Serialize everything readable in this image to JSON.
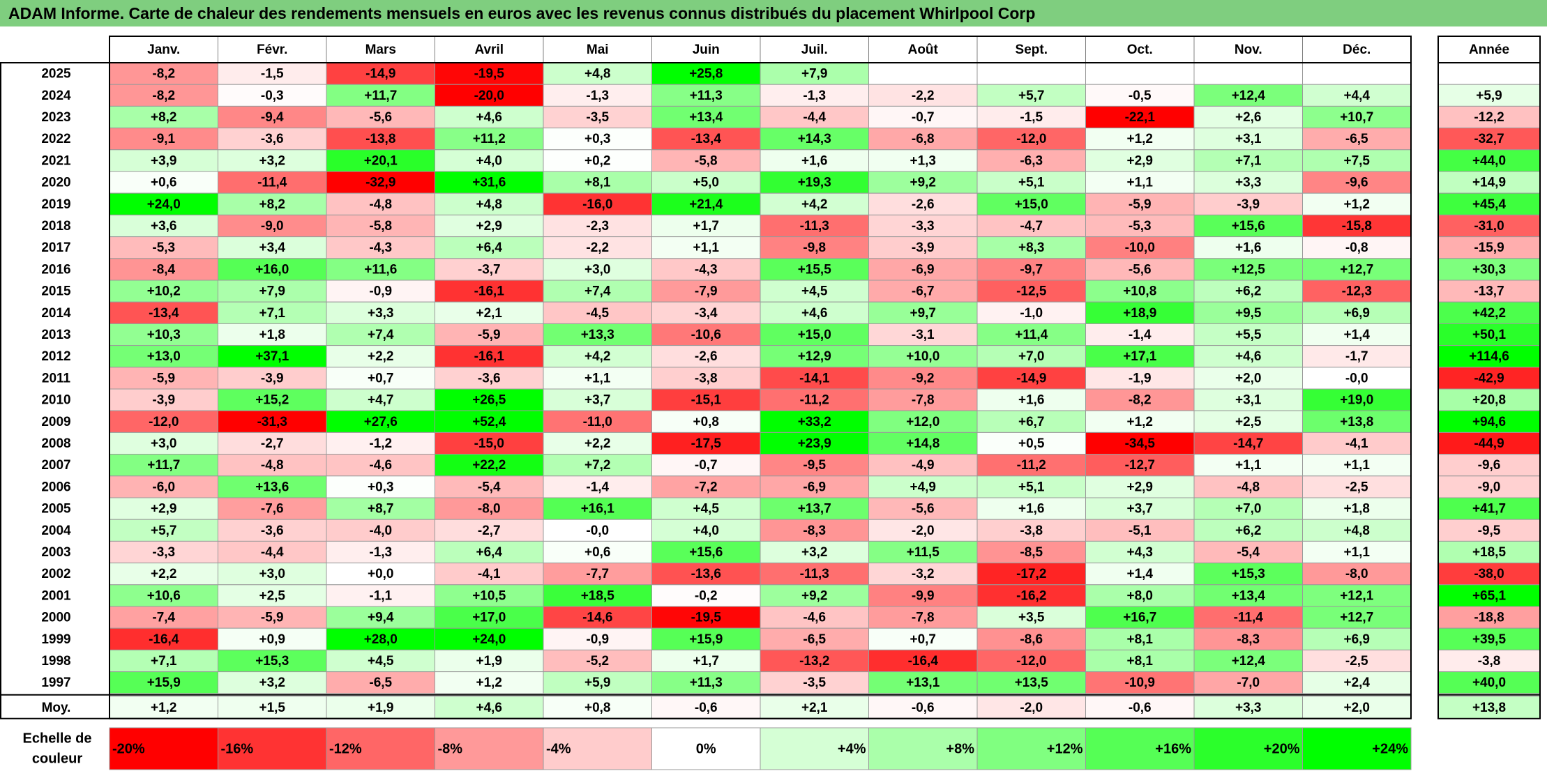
{
  "title": "ADAM Informe. Carte de chaleur des rendements mensuels en euros avec les revenus connus distribués du placement Whirlpool Corp",
  "chart_data": {
    "type": "heatmap",
    "months": [
      "Janv.",
      "Févr.",
      "Mars",
      "Avril",
      "Mai",
      "Juin",
      "Juil.",
      "Août",
      "Sept.",
      "Oct.",
      "Nov.",
      "Déc."
    ],
    "year_header": "Année",
    "rows": [
      {
        "year": "2025",
        "values": [
          "-8,2",
          "-1,5",
          "-14,9",
          "-19,5",
          "+4,8",
          "+25,8",
          "+7,9",
          "",
          "",
          "",
          "",
          ""
        ],
        "annual": ""
      },
      {
        "year": "2024",
        "values": [
          "-8,2",
          "-0,3",
          "+11,7",
          "-20,0",
          "-1,3",
          "+11,3",
          "-1,3",
          "-2,2",
          "+5,7",
          "-0,5",
          "+12,4",
          "+4,4"
        ],
        "annual": "+5,9"
      },
      {
        "year": "2023",
        "values": [
          "+8,2",
          "-9,4",
          "-5,6",
          "+4,6",
          "-3,5",
          "+13,4",
          "-4,4",
          "-0,7",
          "-1,5",
          "-22,1",
          "+2,6",
          "+10,7"
        ],
        "annual": "-12,2"
      },
      {
        "year": "2022",
        "values": [
          "-9,1",
          "-3,6",
          "-13,8",
          "+11,2",
          "+0,3",
          "-13,4",
          "+14,3",
          "-6,8",
          "-12,0",
          "+1,2",
          "+3,1",
          "-6,5"
        ],
        "annual": "-32,7"
      },
      {
        "year": "2021",
        "values": [
          "+3,9",
          "+3,2",
          "+20,1",
          "+4,0",
          "+0,2",
          "-5,8",
          "+1,6",
          "+1,3",
          "-6,3",
          "+2,9",
          "+7,1",
          "+7,5"
        ],
        "annual": "+44,0"
      },
      {
        "year": "2020",
        "values": [
          "+0,6",
          "-11,4",
          "-32,9",
          "+31,6",
          "+8,1",
          "+5,0",
          "+19,3",
          "+9,2",
          "+5,1",
          "+1,1",
          "+3,3",
          "-9,6"
        ],
        "annual": "+14,9"
      },
      {
        "year": "2019",
        "values": [
          "+24,0",
          "+8,2",
          "-4,8",
          "+4,8",
          "-16,0",
          "+21,4",
          "+4,2",
          "-2,6",
          "+15,0",
          "-5,9",
          "-3,9",
          "+1,2"
        ],
        "annual": "+45,4"
      },
      {
        "year": "2018",
        "values": [
          "+3,6",
          "-9,0",
          "-5,8",
          "+2,9",
          "-2,3",
          "+1,7",
          "-11,3",
          "-3,3",
          "-4,7",
          "-5,3",
          "+15,6",
          "-15,8"
        ],
        "annual": "-31,0"
      },
      {
        "year": "2017",
        "values": [
          "-5,3",
          "+3,4",
          "-4,3",
          "+6,4",
          "-2,2",
          "+1,1",
          "-9,8",
          "-3,9",
          "+8,3",
          "-10,0",
          "+1,6",
          "-0,8"
        ],
        "annual": "-15,9"
      },
      {
        "year": "2016",
        "values": [
          "-8,4",
          "+16,0",
          "+11,6",
          "-3,7",
          "+3,0",
          "-4,3",
          "+15,5",
          "-6,9",
          "-9,7",
          "-5,6",
          "+12,5",
          "+12,7"
        ],
        "annual": "+30,3"
      },
      {
        "year": "2015",
        "values": [
          "+10,2",
          "+7,9",
          "-0,9",
          "-16,1",
          "+7,4",
          "-7,9",
          "+4,5",
          "-6,7",
          "-12,5",
          "+10,8",
          "+6,2",
          "-12,3"
        ],
        "annual": "-13,7"
      },
      {
        "year": "2014",
        "values": [
          "-13,4",
          "+7,1",
          "+3,3",
          "+2,1",
          "-4,5",
          "-3,4",
          "+4,6",
          "+9,7",
          "-1,0",
          "+18,9",
          "+9,5",
          "+6,9"
        ],
        "annual": "+42,2"
      },
      {
        "year": "2013",
        "values": [
          "+10,3",
          "+1,8",
          "+7,4",
          "-5,9",
          "+13,3",
          "-10,6",
          "+15,0",
          "-3,1",
          "+11,4",
          "-1,4",
          "+5,5",
          "+1,4"
        ],
        "annual": "+50,1"
      },
      {
        "year": "2012",
        "values": [
          "+13,0",
          "+37,1",
          "+2,2",
          "-16,1",
          "+4,2",
          "-2,6",
          "+12,9",
          "+10,0",
          "+7,0",
          "+17,1",
          "+4,6",
          "-1,7"
        ],
        "annual": "+114,6"
      },
      {
        "year": "2011",
        "values": [
          "-5,9",
          "-3,9",
          "+0,7",
          "-3,6",
          "+1,1",
          "-3,8",
          "-14,1",
          "-9,2",
          "-14,9",
          "-1,9",
          "+2,0",
          "-0,0"
        ],
        "annual": "-42,9"
      },
      {
        "year": "2010",
        "values": [
          "-3,9",
          "+15,2",
          "+4,7",
          "+26,5",
          "+3,7",
          "-15,1",
          "-11,2",
          "-7,8",
          "+1,6",
          "-8,2",
          "+3,1",
          "+19,0"
        ],
        "annual": "+20,8"
      },
      {
        "year": "2009",
        "values": [
          "-12,0",
          "-31,3",
          "+27,6",
          "+52,4",
          "-11,0",
          "+0,8",
          "+33,2",
          "+12,0",
          "+6,7",
          "+1,2",
          "+2,5",
          "+13,8"
        ],
        "annual": "+94,6"
      },
      {
        "year": "2008",
        "values": [
          "+3,0",
          "-2,7",
          "-1,2",
          "-15,0",
          "+2,2",
          "-17,5",
          "+23,9",
          "+14,8",
          "+0,5",
          "-34,5",
          "-14,7",
          "-4,1"
        ],
        "annual": "-44,9"
      },
      {
        "year": "2007",
        "values": [
          "+11,7",
          "-4,8",
          "-4,6",
          "+22,2",
          "+7,2",
          "-0,7",
          "-9,5",
          "-4,9",
          "-11,2",
          "-12,7",
          "+1,1",
          "+1,1"
        ],
        "annual": "-9,6"
      },
      {
        "year": "2006",
        "values": [
          "-6,0",
          "+13,6",
          "+0,3",
          "-5,4",
          "-1,4",
          "-7,2",
          "-6,9",
          "+4,9",
          "+5,1",
          "+2,9",
          "-4,8",
          "-2,5"
        ],
        "annual": "-9,0"
      },
      {
        "year": "2005",
        "values": [
          "+2,9",
          "-7,6",
          "+8,7",
          "-8,0",
          "+16,1",
          "+4,5",
          "+13,7",
          "-5,6",
          "+1,6",
          "+3,7",
          "+7,0",
          "+1,8"
        ],
        "annual": "+41,7"
      },
      {
        "year": "2004",
        "values": [
          "+5,7",
          "-3,6",
          "-4,0",
          "-2,7",
          "-0,0",
          "+4,0",
          "-8,3",
          "-2,0",
          "-3,8",
          "-5,1",
          "+6,2",
          "+4,8"
        ],
        "annual": "-9,5"
      },
      {
        "year": "2003",
        "values": [
          "-3,3",
          "-4,4",
          "-1,3",
          "+6,4",
          "+0,6",
          "+15,6",
          "+3,2",
          "+11,5",
          "-8,5",
          "+4,3",
          "-5,4",
          "+1,1"
        ],
        "annual": "+18,5"
      },
      {
        "year": "2002",
        "values": [
          "+2,2",
          "+3,0",
          "+0,0",
          "-4,1",
          "-7,7",
          "-13,6",
          "-11,3",
          "-3,2",
          "-17,2",
          "+1,4",
          "+15,3",
          "-8,0"
        ],
        "annual": "-38,0"
      },
      {
        "year": "2001",
        "values": [
          "+10,6",
          "+2,5",
          "-1,1",
          "+10,5",
          "+18,5",
          "-0,2",
          "+9,2",
          "-9,9",
          "-16,2",
          "+8,0",
          "+13,4",
          "+12,1"
        ],
        "annual": "+65,1"
      },
      {
        "year": "2000",
        "values": [
          "-7,4",
          "-5,9",
          "+9,4",
          "+17,0",
          "-14,6",
          "-19,5",
          "-4,6",
          "-7,8",
          "+3,5",
          "+16,7",
          "-11,4",
          "+12,7"
        ],
        "annual": "-18,8"
      },
      {
        "year": "1999",
        "values": [
          "-16,4",
          "+0,9",
          "+28,0",
          "+24,0",
          "-0,9",
          "+15,9",
          "-6,5",
          "+0,7",
          "-8,6",
          "+8,1",
          "-8,3",
          "+6,9"
        ],
        "annual": "+39,5"
      },
      {
        "year": "1998",
        "values": [
          "+7,1",
          "+15,3",
          "+4,5",
          "+1,9",
          "-5,2",
          "+1,7",
          "-13,2",
          "-16,4",
          "-12,0",
          "+8,1",
          "+12,4",
          "-2,5"
        ],
        "annual": "-3,8"
      },
      {
        "year": "1997",
        "values": [
          "+15,9",
          "+3,2",
          "-6,5",
          "+1,2",
          "+5,9",
          "+11,3",
          "-3,5",
          "+13,1",
          "+13,5",
          "-10,9",
          "-7,0",
          "+2,4"
        ],
        "annual": "+40,0"
      }
    ],
    "average": {
      "label": "Moy.",
      "values": [
        "+1,2",
        "+1,5",
        "+1,9",
        "+4,6",
        "+0,8",
        "-0,6",
        "+2,1",
        "-0,6",
        "-2,0",
        "-0,6",
        "+3,3",
        "+2,0"
      ],
      "annual": "+13,8"
    },
    "scale": {
      "label_line1": "Echelle de",
      "label_line2": "couleur",
      "steps": [
        "-20%",
        "-16%",
        "-12%",
        "-8%",
        "-4%",
        "0%",
        "+4%",
        "+8%",
        "+12%",
        "+16%",
        "+20%",
        "+24%"
      ],
      "step_values": [
        -20,
        -16,
        -12,
        -8,
        -4,
        0,
        4,
        8,
        12,
        16,
        20,
        24
      ]
    },
    "colors": {
      "negative_max": "#ff0000",
      "positive_max": "#00ff00",
      "neutral": "#ffffff",
      "title_bar": "#7fce7f",
      "border": "#000000"
    }
  }
}
